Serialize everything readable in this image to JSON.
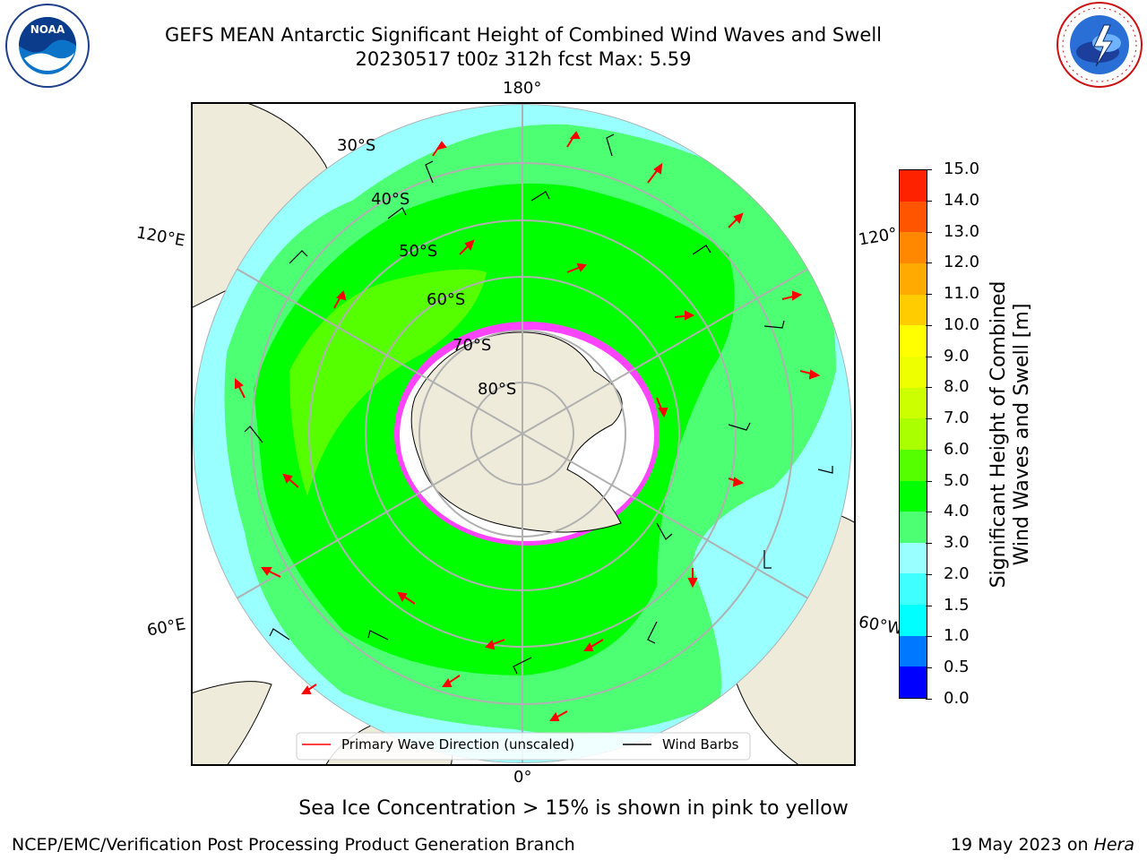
{
  "header": {
    "title_line1": "GEFS MEAN Antarctic Significant Height of Combined Wind Waves and Swell",
    "title_line2": "20230517 t00z 312h fcst   Max: 5.59",
    "left_logo_text": "NOAA",
    "right_logo_text": "NATIONAL WEATHER SERVICE"
  },
  "map": {
    "longitude_labels": {
      "lon_180": "180°",
      "lon_0": "0°",
      "lon_120e": "120°E",
      "lon_120w": "120°",
      "lon_60e": "60°E",
      "lon_60w": "60°W"
    },
    "latitude_labels": [
      "30°S",
      "40°S",
      "50°S",
      "60°S",
      "70°S",
      "80°S"
    ],
    "legend": {
      "wave_direction": "Primary Wave Direction (unscaled)",
      "wind_barbs": "Wind Barbs"
    },
    "colors": {
      "land": "#efebdb",
      "ice_white": "#ffffff",
      "sea_ice_edge": "#ff44ff",
      "arrow": "#ff0000"
    }
  },
  "colorbar": {
    "label_line1": "Significant Height of Combined",
    "label_line2": "Wind Waves and Swell [m]",
    "ticks": [
      "15.0",
      "14.0",
      "13.0",
      "12.0",
      "11.0",
      "10.0",
      "9.0",
      "8.0",
      "7.0",
      "6.0",
      "5.0",
      "4.0",
      "3.0",
      "2.0",
      "1.5",
      "1.0",
      "0.5",
      "0.0"
    ],
    "colors_bottom_to_top": [
      "#0000ff",
      "#0078ff",
      "#00ffff",
      "#40ffff",
      "#99ffff",
      "#4dff73",
      "#00ff00",
      "#55ff00",
      "#aaff00",
      "#ccff00",
      "#eeff00",
      "#ffff00",
      "#ffcc00",
      "#ffaa00",
      "#ff8800",
      "#ff5500",
      "#ff2200"
    ]
  },
  "notes": {
    "sea_ice_note": "Sea Ice Concentration > 15% is shown in pink to yellow"
  },
  "footer": {
    "left": "NCEP/EMC/Verification Post Processing Product Generation Branch",
    "right_prefix": "19 May 2023 on ",
    "right_host": "Hera"
  }
}
